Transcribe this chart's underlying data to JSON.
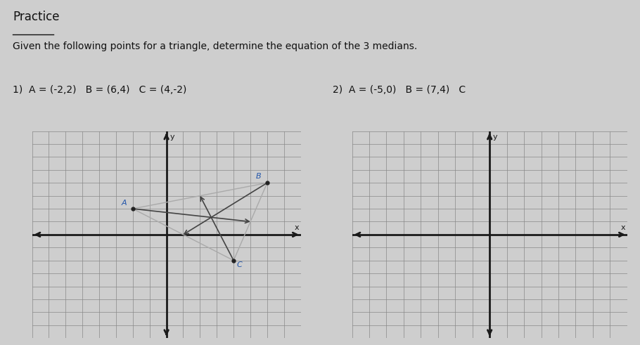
{
  "title": "Practice",
  "subtitle": "Given the following points for a triangle, determine the equation of the 3 medians.",
  "problem1_label": "1)  A = (-2,2)   B = (6,4)   C = (4,-2)",
  "problem2_label": "2)  A = (-5,0)   B = (7,4)   C",
  "bg_color": "#cecece",
  "grid_color": "#888888",
  "axis_color": "#1a1a1a",
  "triangle1": {
    "A": [
      -2,
      2
    ],
    "B": [
      6,
      4
    ],
    "C": [
      4,
      -2
    ]
  },
  "grid_range": [
    -8,
    8
  ],
  "median_color": "#444444",
  "triangle_color": "#aaaaaa",
  "point_color": "#222222",
  "label_color": "#2255aa"
}
